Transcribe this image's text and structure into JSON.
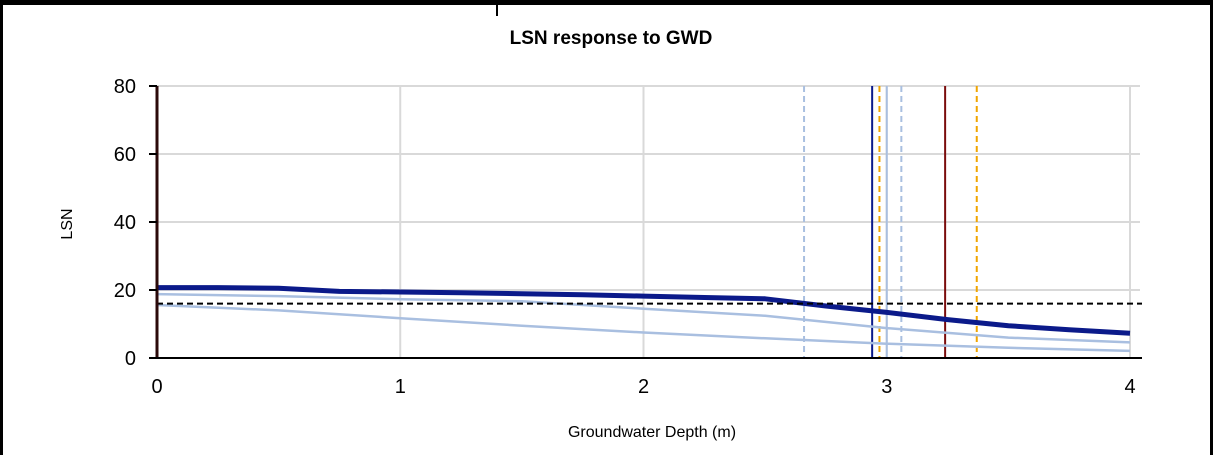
{
  "chart_data": {
    "type": "line",
    "title": "LSN response to GWD",
    "xlabel": "Groundwater Depth (m)",
    "ylabel": "LSN",
    "xlim": [
      0,
      4
    ],
    "ylim": [
      0,
      80
    ],
    "xticks": [
      "0",
      "1",
      "2",
      "3",
      "4"
    ],
    "yticks": [
      "0",
      "20",
      "40",
      "60",
      "80"
    ],
    "grid": true,
    "series": [
      {
        "color": "#0b1a8a",
        "style": "solid-thick",
        "x": [
          0,
          0.25,
          0.5,
          0.75,
          1.0,
          1.25,
          1.5,
          1.75,
          2.0,
          2.25,
          2.5,
          2.75,
          3.0,
          3.25,
          3.5,
          3.75,
          4.0
        ],
        "y": [
          20.7,
          20.7,
          20.5,
          19.6,
          19.4,
          19.2,
          18.9,
          18.6,
          18.2,
          17.8,
          17.4,
          15.3,
          13.4,
          11.3,
          9.5,
          8.3,
          7.3
        ]
      },
      {
        "color": "#a9bfe0",
        "style": "solid",
        "x": [
          0,
          0.5,
          1.0,
          1.5,
          2.0,
          2.5,
          3.0,
          3.5,
          4.0
        ],
        "y": [
          18.8,
          18.2,
          17.3,
          16.7,
          14.5,
          12.4,
          8.8,
          6.0,
          4.6
        ]
      },
      {
        "color": "#a9bfe0",
        "style": "solid",
        "x": [
          0,
          0.5,
          1.0,
          1.5,
          2.0,
          2.5,
          3.0,
          3.5,
          4.0
        ],
        "y": [
          15.6,
          14.0,
          11.7,
          9.5,
          7.5,
          5.8,
          4.2,
          3.0,
          2.1
        ]
      }
    ],
    "hlines": [
      {
        "y": 16,
        "color": "#000000",
        "style": "dashed"
      }
    ],
    "vlines": [
      {
        "x": 0.0,
        "color": "#5a0a0a",
        "style": "solid"
      },
      {
        "x": 2.66,
        "color": "#a9bfe0",
        "style": "dashed"
      },
      {
        "x": 2.94,
        "color": "#0b1a8a",
        "style": "solid"
      },
      {
        "x": 2.97,
        "color": "#f0a500",
        "style": "dashed"
      },
      {
        "x": 3.0,
        "color": "#a9bfe0",
        "style": "solid"
      },
      {
        "x": 3.06,
        "color": "#a9bfe0",
        "style": "dashed"
      },
      {
        "x": 3.24,
        "color": "#7a0c0c",
        "style": "solid"
      },
      {
        "x": 3.37,
        "color": "#f0a500",
        "style": "dashed"
      }
    ]
  }
}
